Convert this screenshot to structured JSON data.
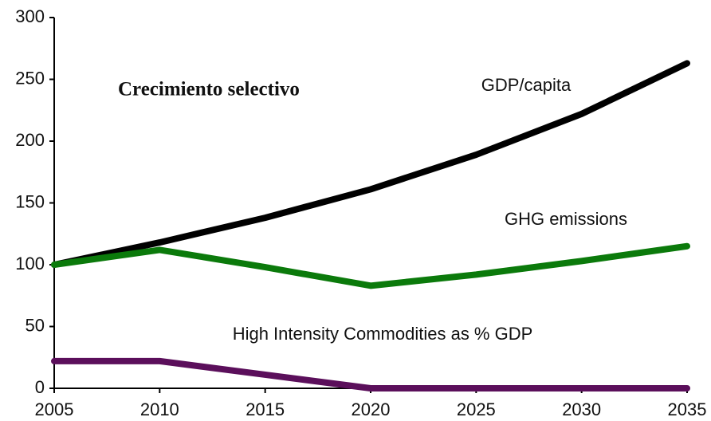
{
  "chart_data": {
    "type": "line",
    "title": "Crecimiento selectivo",
    "x": [
      2005,
      2010,
      2015,
      2020,
      2025,
      2030,
      2035
    ],
    "series": [
      {
        "name": "GDP/capita",
        "color": "#000000",
        "values": [
          100,
          118,
          138,
          161,
          189,
          222,
          263
        ]
      },
      {
        "name": "GHG emissions",
        "color": "#0b7a0b",
        "values": [
          100,
          112,
          98,
          83,
          92,
          103,
          115
        ]
      },
      {
        "name": "High Intensity Commodities as % GDP",
        "color": "#5b0f5b",
        "values": [
          22,
          22,
          11,
          0,
          0,
          0,
          0
        ]
      }
    ],
    "xlim": [
      2005,
      2035
    ],
    "xticks": [
      2005,
      2010,
      2015,
      2020,
      2025,
      2030,
      2035
    ],
    "ylim": [
      0,
      300
    ],
    "yticks": [
      0,
      50,
      100,
      150,
      200,
      250,
      300
    ],
    "grid": false
  }
}
